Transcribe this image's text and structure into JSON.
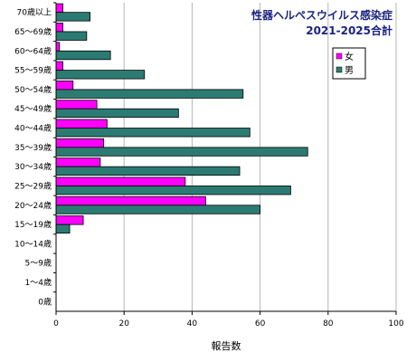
{
  "chart_data": {
    "type": "bar",
    "orientation": "horizontal",
    "title": "性器ヘルペスウイルス感染症",
    "subtitle": "2021-2025合計",
    "xlabel": "報告数",
    "ylabel": "",
    "xlim": [
      0,
      100
    ],
    "xticks": [
      0,
      20,
      40,
      60,
      80,
      100
    ],
    "grid": true,
    "legend_position": "top-right",
    "categories": [
      "70歳以上",
      "65～69歳",
      "60～64歳",
      "55～59歳",
      "50～54歳",
      "45～49歳",
      "40～44歳",
      "35～39歳",
      "30～34歳",
      "25～29歳",
      "20～24歳",
      "15～19歳",
      "10～14歳",
      "5～9歳",
      "1～4歳",
      "0歳"
    ],
    "series": [
      {
        "name": "女",
        "color": "#ff00ff",
        "values": [
          2,
          2,
          1,
          2,
          5,
          12,
          15,
          14,
          13,
          38,
          44,
          8,
          0,
          0,
          0,
          0
        ]
      },
      {
        "name": "男",
        "color": "#2b7b73",
        "values": [
          10,
          9,
          16,
          26,
          55,
          36,
          57,
          74,
          54,
          69,
          60,
          4,
          0,
          0,
          0,
          0
        ]
      }
    ]
  }
}
